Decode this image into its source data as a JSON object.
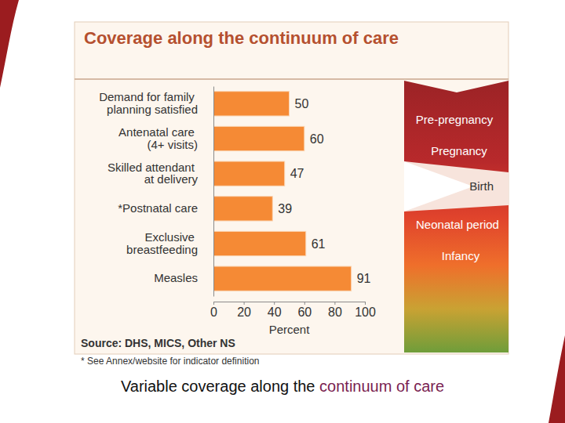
{
  "chart_data": {
    "type": "bar",
    "orientation": "horizontal",
    "title": "Coverage along the continuum of care",
    "categories": [
      "Demand for family planning satisfied",
      "Antenatal care (4+ visits)",
      "Skilled attendant at delivery",
      "*Postnatal care",
      "Exclusive breastfeeding",
      "Measles"
    ],
    "values": [
      50,
      60,
      47,
      39,
      61,
      91
    ],
    "color": "#f58a35",
    "data_labels": true,
    "xlim": [
      0,
      100
    ],
    "xticks": [
      0,
      20,
      40,
      60,
      80,
      100
    ],
    "xlabel": "Percent",
    "source": "Source: DHS, MICS, Other NS",
    "note": "* See Annex/website for indicator definition",
    "stages": [
      "Pre-pregnancy",
      "Pregnancy",
      "Birth",
      "Neonatal period",
      "Infancy"
    ]
  },
  "caption": {
    "text": "Variable coverage along the",
    "highlight": "continuum of care"
  }
}
